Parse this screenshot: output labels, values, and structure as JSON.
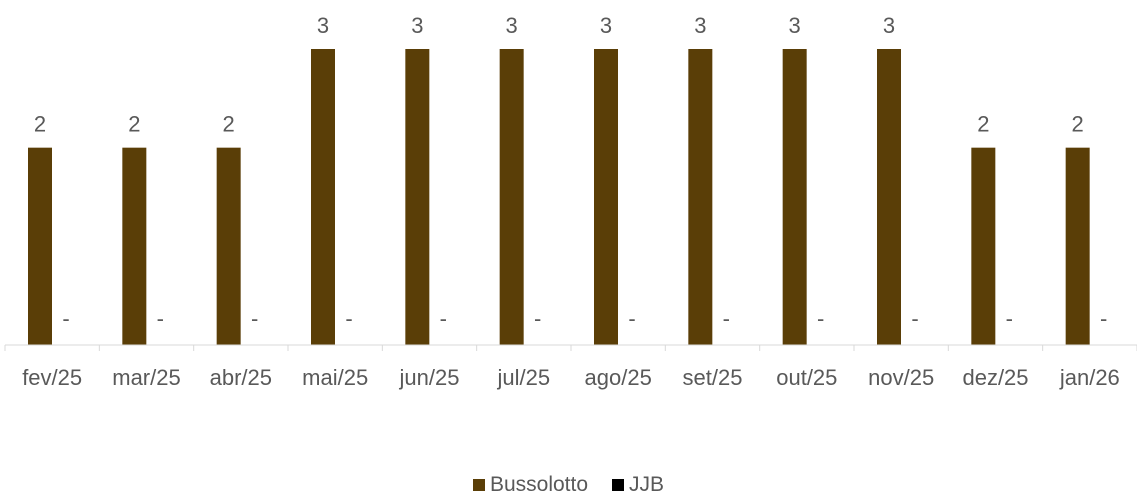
{
  "chart_data": {
    "type": "bar",
    "categories": [
      "fev/25",
      "mar/25",
      "abr/25",
      "mai/25",
      "jun/25",
      "jul/25",
      "ago/25",
      "set/25",
      "out/25",
      "nov/25",
      "dez/25",
      "jan/26"
    ],
    "series": [
      {
        "name": "Bussolotto",
        "color": "#5a3e07",
        "values": [
          2,
          2,
          2,
          3,
          3,
          3,
          3,
          3,
          3,
          3,
          2,
          2
        ],
        "labels": [
          "2",
          "2",
          "2",
          "3",
          "3",
          "3",
          "3",
          "3",
          "3",
          "3",
          "2",
          "2"
        ]
      },
      {
        "name": "JJB",
        "color": "#000000",
        "values": [
          0,
          0,
          0,
          0,
          0,
          0,
          0,
          0,
          0,
          0,
          0,
          0
        ],
        "labels": [
          "-",
          "-",
          "-",
          "-",
          "-",
          "-",
          "-",
          "-",
          "-",
          "-",
          "-",
          "-"
        ]
      }
    ],
    "ylim": [
      0,
      3
    ],
    "grid": false,
    "legend_position": "bottom"
  }
}
